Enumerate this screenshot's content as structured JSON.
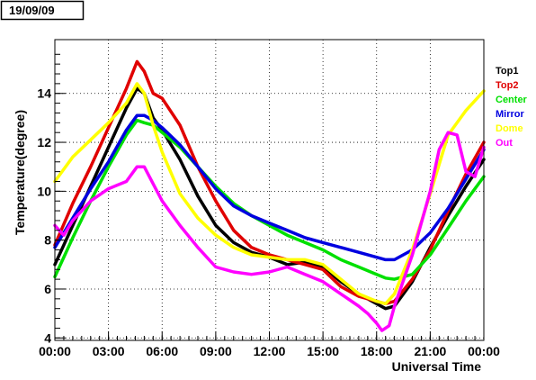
{
  "date_label": "19/09/09",
  "chart_data": {
    "type": "line",
    "title": "",
    "xlabel": "Universal Time",
    "ylabel": "Temperature(degree)",
    "xlim": [
      0,
      24
    ],
    "ylim": [
      3.9,
      16.2
    ],
    "x_ticks": [
      "00:00",
      "03:00",
      "06:00",
      "09:00",
      "12:00",
      "15:00",
      "18:00",
      "21:00",
      "00:00"
    ],
    "y_ticks": [
      4,
      6,
      8,
      10,
      12,
      14
    ],
    "grid": true,
    "legend_position": "right",
    "series": [
      {
        "name": "Top1",
        "color": "#000000",
        "x": [
          0,
          1,
          2,
          3,
          4,
          4.6,
          5,
          5.5,
          6,
          7,
          8,
          9,
          10,
          11,
          12,
          13,
          14,
          15,
          16,
          17,
          18,
          18.5,
          19,
          20,
          21,
          22,
          23,
          24
        ],
        "y": [
          7.0,
          8.6,
          10.2,
          11.8,
          13.4,
          14.2,
          14.0,
          13.0,
          12.5,
          11.3,
          9.8,
          8.6,
          7.9,
          7.5,
          7.3,
          7.0,
          7.1,
          6.9,
          6.3,
          5.8,
          5.4,
          5.2,
          5.3,
          6.3,
          7.7,
          9.0,
          10.2,
          11.3
        ]
      },
      {
        "name": "Top2",
        "color": "#e00000",
        "x": [
          0,
          1,
          2,
          3,
          4,
          4.6,
          5,
          5.5,
          6,
          7,
          8,
          9,
          10,
          11,
          12,
          13,
          14,
          15,
          16,
          17,
          18,
          18.5,
          19,
          20,
          21,
          22,
          23,
          24
        ],
        "y": [
          7.8,
          9.5,
          11.0,
          12.6,
          14.2,
          15.3,
          14.9,
          14.0,
          13.8,
          12.7,
          11.0,
          9.6,
          8.4,
          7.7,
          7.4,
          7.2,
          7.0,
          6.8,
          6.1,
          5.7,
          5.5,
          5.4,
          5.5,
          6.4,
          7.6,
          9.2,
          10.7,
          12.0
        ]
      },
      {
        "name": "Center",
        "color": "#00e000",
        "x": [
          0,
          1,
          2,
          3,
          4,
          4.6,
          5,
          5.5,
          6,
          7,
          8,
          9,
          10,
          11,
          12,
          13,
          14,
          15,
          16,
          17,
          18,
          18.5,
          19,
          20,
          21,
          22,
          23,
          24
        ],
        "y": [
          6.5,
          8.1,
          9.6,
          11.0,
          12.3,
          12.9,
          12.8,
          12.7,
          12.4,
          11.8,
          11.0,
          10.2,
          9.5,
          9.0,
          8.6,
          8.2,
          7.9,
          7.6,
          7.2,
          6.9,
          6.6,
          6.45,
          6.4,
          6.6,
          7.4,
          8.5,
          9.6,
          10.6
        ]
      },
      {
        "name": "Mirror",
        "color": "#0000e0",
        "x": [
          0,
          1,
          2,
          3,
          4,
          4.6,
          5,
          5.5,
          6,
          7,
          8,
          9,
          10,
          11,
          12,
          13,
          14,
          15,
          16,
          17,
          18,
          18.5,
          19,
          20,
          21,
          22,
          23,
          24
        ],
        "y": [
          7.7,
          8.9,
          10.1,
          11.2,
          12.5,
          13.1,
          13.1,
          12.9,
          12.6,
          11.9,
          11.0,
          10.1,
          9.4,
          9.0,
          8.7,
          8.4,
          8.1,
          7.9,
          7.7,
          7.5,
          7.3,
          7.2,
          7.2,
          7.6,
          8.3,
          9.3,
          10.5,
          11.7
        ]
      },
      {
        "name": "Dome",
        "color": "#ffff00",
        "x": [
          0,
          1,
          2,
          3,
          4,
          4.6,
          5,
          5.5,
          6,
          7,
          8,
          9,
          10,
          11,
          12,
          13,
          14,
          15,
          16,
          17,
          18,
          18.5,
          19,
          20,
          21,
          22,
          23,
          24
        ],
        "y": [
          10.4,
          11.4,
          12.1,
          12.8,
          13.6,
          14.4,
          14.0,
          12.7,
          11.6,
          9.9,
          8.9,
          8.2,
          7.7,
          7.4,
          7.3,
          7.2,
          7.2,
          7.0,
          6.4,
          5.8,
          5.5,
          5.4,
          5.8,
          7.6,
          9.9,
          12.3,
          13.3,
          14.1
        ]
      },
      {
        "name": "Out",
        "color": "#ff00ff",
        "x": [
          0,
          0.5,
          1,
          2,
          3,
          4,
          4.6,
          5,
          5.5,
          6,
          7,
          8,
          9,
          10,
          11,
          12,
          13,
          14,
          15,
          16,
          17,
          17.5,
          18,
          18.3,
          18.7,
          19,
          20,
          21,
          21.5,
          22,
          22.5,
          23,
          23.5,
          24
        ],
        "y": [
          8.6,
          8.2,
          8.8,
          9.6,
          10.1,
          10.4,
          11.0,
          11.0,
          10.3,
          9.6,
          8.6,
          7.7,
          6.9,
          6.7,
          6.6,
          6.7,
          6.9,
          6.6,
          6.3,
          5.8,
          5.3,
          5.0,
          4.6,
          4.3,
          4.5,
          5.3,
          7.4,
          10.0,
          11.7,
          12.4,
          12.3,
          10.8,
          10.6,
          11.8
        ]
      }
    ]
  }
}
